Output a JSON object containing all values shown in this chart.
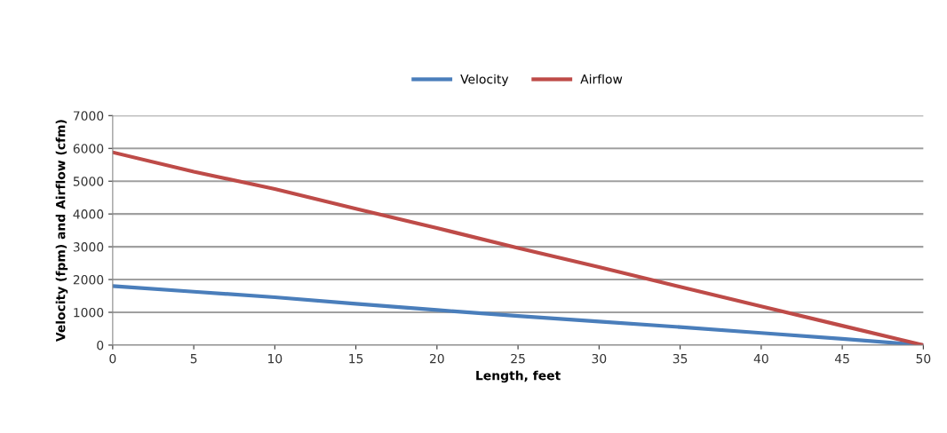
{
  "chart_data": {
    "type": "line",
    "xlabel": "Length, feet",
    "ylabel": "Velocity (fpm) and Airflow (cfm)",
    "x": [
      0,
      5,
      10,
      15,
      20,
      25,
      30,
      35,
      40,
      45,
      50
    ],
    "series": [
      {
        "name": "Velocity",
        "color": "#4a7ebb",
        "values": [
          1800,
          1630,
          1460,
          1260,
          1070,
          890,
          720,
          550,
          370,
          190,
          0
        ]
      },
      {
        "name": "Airflow",
        "color": "#be4b48",
        "values": [
          5880,
          5290,
          4760,
          4160,
          3570,
          2960,
          2380,
          1780,
          1180,
          590,
          0
        ]
      }
    ],
    "xlim": [
      0,
      50
    ],
    "xticks": [
      0,
      5,
      10,
      15,
      20,
      25,
      30,
      35,
      40,
      45,
      50
    ],
    "ylim": [
      0,
      7000
    ],
    "yticks": [
      0,
      1000,
      2000,
      3000,
      4000,
      5000,
      6000,
      7000
    ],
    "grid": "y",
    "legend": "top",
    "marker": "none",
    "line_style": "solid"
  }
}
